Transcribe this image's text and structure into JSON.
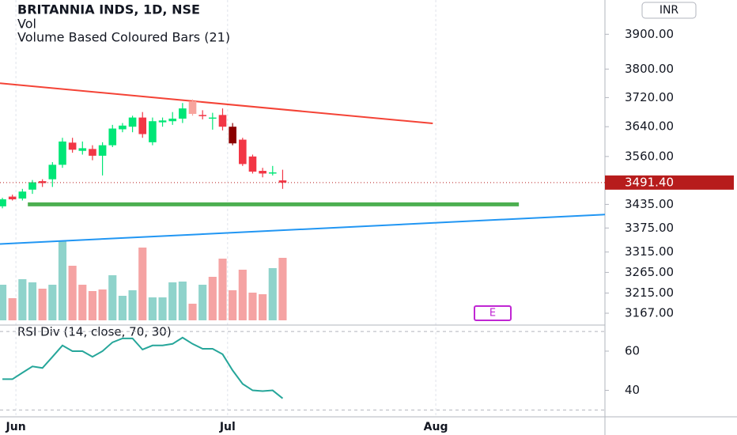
{
  "chart_data": {
    "type": "candlestick",
    "title": "BRITANNIA INDS, 1D, NSE",
    "subtitles": [
      "Vol",
      "Volume Based Coloured Bars (21)"
    ],
    "currency": "INR",
    "marker_label": "E",
    "categories": [
      null,
      null,
      null,
      null,
      null,
      null,
      null,
      null,
      null,
      null,
      null,
      null,
      null,
      null,
      null,
      null,
      null,
      null,
      null,
      null,
      null,
      null,
      null,
      null,
      null,
      null,
      null,
      null,
      null
    ],
    "open": [
      3430,
      3455,
      3450,
      3473,
      3495,
      3500,
      3538,
      3597,
      3575,
      3580,
      3562,
      3590,
      3633,
      3640,
      3665,
      3598,
      3652,
      3655,
      3662,
      3710,
      3672,
      3662,
      3672,
      3640,
      3605,
      3560,
      3522,
      3515,
      3497
    ],
    "high": [
      3452,
      3460,
      3475,
      3498,
      3500,
      3545,
      3610,
      3610,
      3600,
      3590,
      3598,
      3645,
      3650,
      3670,
      3680,
      3665,
      3665,
      3680,
      3705,
      3715,
      3685,
      3678,
      3690,
      3650,
      3610,
      3565,
      3530,
      3535,
      3525
    ],
    "low": [
      3425,
      3445,
      3445,
      3462,
      3480,
      3480,
      3530,
      3570,
      3565,
      3550,
      3510,
      3585,
      3625,
      3625,
      3610,
      3590,
      3640,
      3645,
      3650,
      3670,
      3660,
      3632,
      3630,
      3590,
      3535,
      3515,
      3505,
      3510,
      3475
    ],
    "close": [
      3448,
      3448,
      3468,
      3492,
      3490,
      3538,
      3600,
      3578,
      3582,
      3562,
      3590,
      3635,
      3643,
      3665,
      3620,
      3655,
      3657,
      3662,
      3690,
      3675,
      3670,
      3665,
      3640,
      3595,
      3540,
      3520,
      3515,
      3518,
      3491.4
    ],
    "candle_colors": [
      "#00e676",
      "#f23645",
      "#00e676",
      "#00e676",
      "#f23645",
      "#00e676",
      "#00e676",
      "#f23645",
      "#00e676",
      "#f23645",
      "#00e676",
      "#00e676",
      "#00e676",
      "#00e676",
      "#f23645",
      "#00e676",
      "#00e676",
      "#00e676",
      "#00e676",
      "#f7a49d",
      "#f23645",
      "#00e676",
      "#f23645",
      "#8b0000",
      "#f23645",
      "#f23645",
      "#f23645",
      "#00e676",
      "#f23645"
    ],
    "last_price_label": "3491.40",
    "last_price_color": "#b71c1c",
    "log_scale": true,
    "ylim": [
      3141,
      4001
    ],
    "yticks": [
      {
        "value": 3900,
        "label": "3900.00"
      },
      {
        "value": 3800,
        "label": "3800.00"
      },
      {
        "value": 3720,
        "label": "3720.00"
      },
      {
        "value": 3640,
        "label": "3640.00"
      },
      {
        "value": 3560,
        "label": "3560.00"
      },
      {
        "value": 3435,
        "label": "3435.00"
      },
      {
        "value": 3375,
        "label": "3375.00"
      },
      {
        "value": 3315,
        "label": "3315.00"
      },
      {
        "value": 3265,
        "label": "3265.00"
      },
      {
        "value": 3215,
        "label": "3215.00"
      },
      {
        "value": 3167,
        "label": "3167.00"
      }
    ],
    "xlim": [
      -0.24,
      60.2
    ],
    "xticks": [
      {
        "value": 1.35,
        "label": "Jun"
      },
      {
        "value": 22.5,
        "label": "Jul"
      },
      {
        "value": 43.3,
        "label": "Aug"
      }
    ],
    "volume": {
      "name": "Vol",
      "values": [
        450000,
        280000,
        520000,
        480000,
        400000,
        450000,
        1000000,
        690000,
        450000,
        370000,
        390000,
        570000,
        310000,
        380000,
        920000,
        290000,
        290000,
        480000,
        490000,
        210000,
        450000,
        550000,
        780000,
        380000,
        640000,
        350000,
        330000,
        660000,
        790000
      ],
      "colors": [
        "#8fd3cb",
        "#f5a3a3",
        "#8fd3cb",
        "#8fd3cb",
        "#f5a3a3",
        "#8fd3cb",
        "#8fd3cb",
        "#f5a3a3",
        "#f5a3a3",
        "#f5a3a3",
        "#f5a3a3",
        "#8fd3cb",
        "#8fd3cb",
        "#8fd3cb",
        "#f5a3a3",
        "#8fd3cb",
        "#8fd3cb",
        "#8fd3cb",
        "#8fd3cb",
        "#f5a3a3",
        "#8fd3cb",
        "#f5a3a3",
        "#f5a3a3",
        "#f5a3a3",
        "#f5a3a3",
        "#f5a3a3",
        "#f5a3a3",
        "#8fd3cb",
        "#f5a3a3"
      ]
    },
    "lines": [
      {
        "color": "#f44336",
        "x": [
          -0.24,
          43.0
        ],
        "y": [
          3760,
          3649
        ]
      },
      {
        "color": "#4caf50",
        "x": [
          2.54,
          51.6
        ],
        "y": [
          3435,
          3435
        ]
      },
      {
        "color": "#2196f3",
        "x": [
          -0.24,
          60.2
        ],
        "y": [
          3335,
          3409
        ]
      }
    ],
    "rsi": {
      "title": "RSI Div (14, close, 70, 30)",
      "color": "#26a69a",
      "values": [
        45.7,
        45.7,
        49,
        52.2,
        51.4,
        57.1,
        62.9,
        60,
        60,
        57.1,
        60,
        64.5,
        66.5,
        66.5,
        60.8,
        62.9,
        62.9,
        63.7,
        66.9,
        63.7,
        61.2,
        61.2,
        58.4,
        50.2,
        43.3,
        40,
        39.6,
        40,
        35.9
      ],
      "ylim": [
        26.5,
        73.3
      ],
      "yticks": [
        60,
        40
      ],
      "levels": [
        70,
        30
      ]
    }
  }
}
